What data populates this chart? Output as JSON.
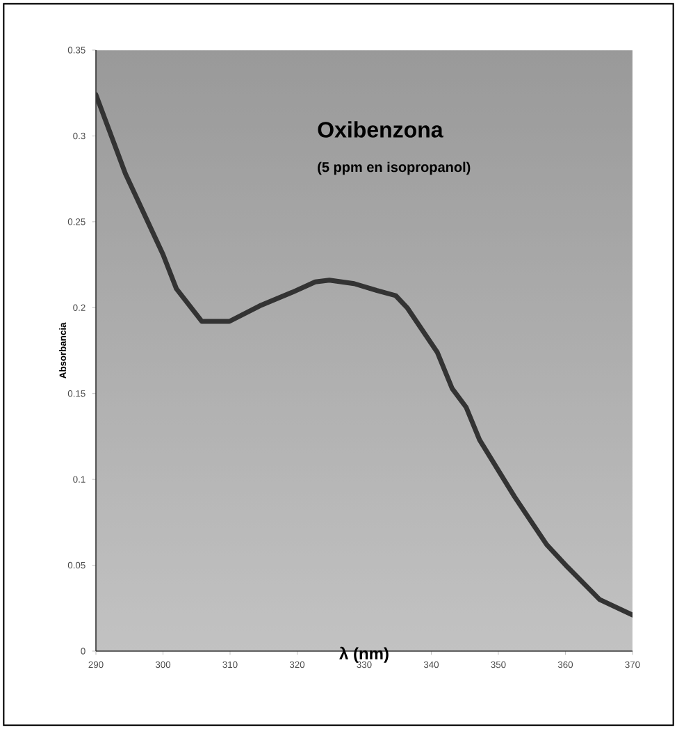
{
  "chart_data": {
    "type": "line",
    "title": "Oxibenzona",
    "subtitle": "(5 ppm en isopropanol)",
    "xlabel": "λ (nm)",
    "ylabel": "Absorbancia",
    "x": [
      290,
      294.4,
      300,
      302,
      305.8,
      309.9,
      314.4,
      319.3,
      322.7,
      324.8,
      328.5,
      331.9,
      334.7,
      336.4,
      340.9,
      343.1,
      345.2,
      347.2,
      352.4,
      357.2,
      360.3,
      365.1,
      370
    ],
    "series": [
      {
        "color": "#333333",
        "values": [
          0.324,
          0.278,
          0.231,
          0.211,
          0.192,
          0.192,
          0.201,
          0.209,
          0.215,
          0.216,
          0.214,
          0.21,
          0.207,
          0.2,
          0.174,
          0.153,
          0.142,
          0.123,
          0.09,
          0.062,
          0.049,
          0.03,
          0.021
        ]
      }
    ],
    "xlim": [
      290,
      370
    ],
    "ylim": [
      0,
      0.35
    ],
    "xticks": [
      290,
      300,
      310,
      320,
      330,
      340,
      350,
      360,
      370
    ],
    "yticks": [
      0,
      0.05,
      0.1,
      0.15,
      0.2,
      0.25,
      0.3,
      0.35
    ],
    "grid": false,
    "marker": "none",
    "line_style": "solid"
  }
}
